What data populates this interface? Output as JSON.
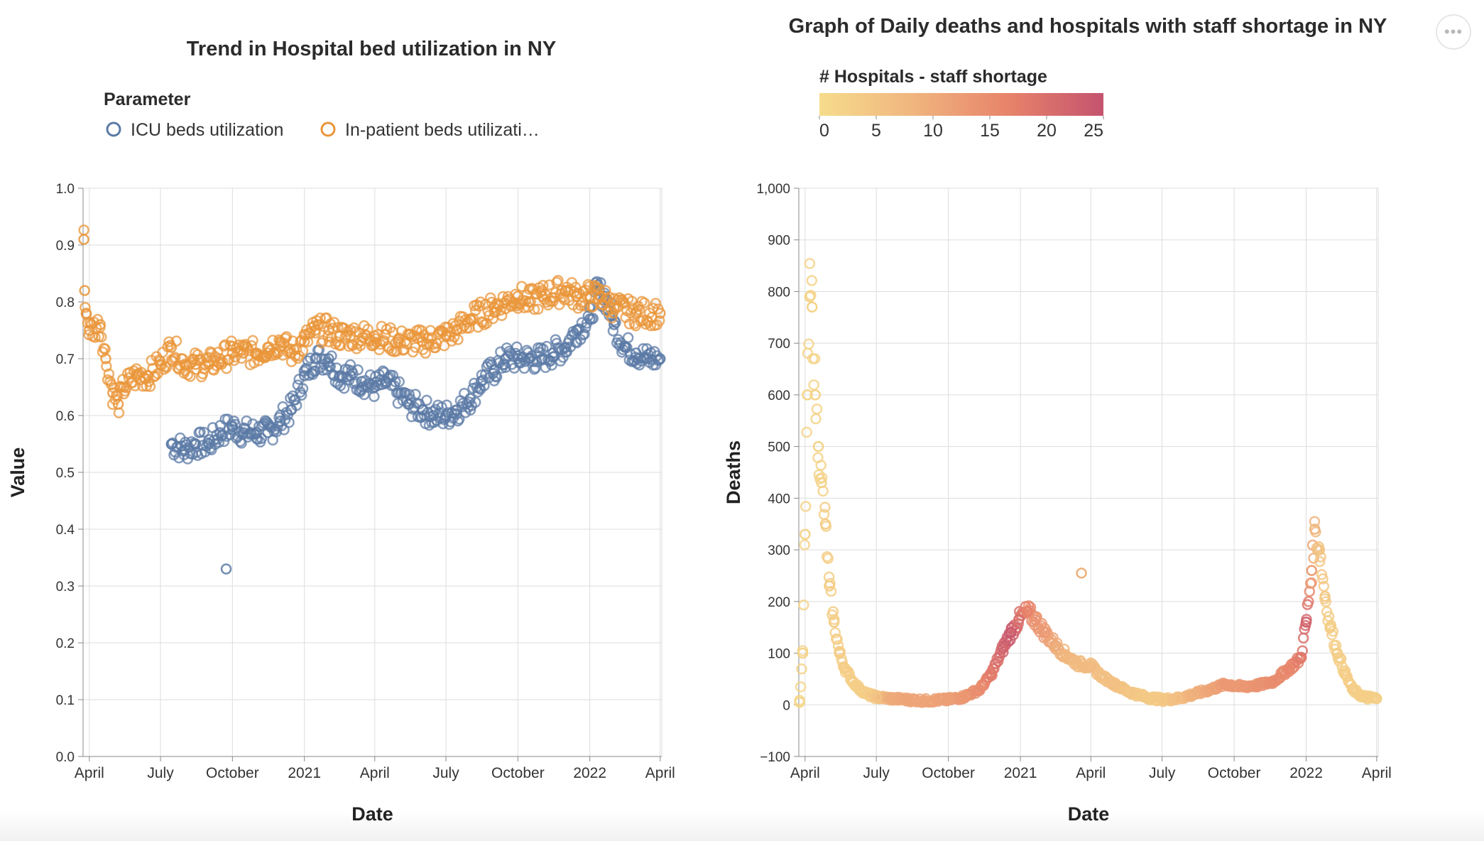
{
  "menu": {
    "icon": "more-horizontal-icon",
    "glyph": "•••"
  },
  "chart_data": [
    {
      "type": "scatter",
      "title": "Trend in Hospital bed utilization in NY",
      "xlabel": "Date",
      "ylabel": "Value",
      "x_tick_labels": [
        "April",
        "July",
        "October",
        "2021",
        "April",
        "July",
        "October",
        "2022",
        "April"
      ],
      "x_range": [
        "2020-03-24",
        "2022-04-03"
      ],
      "ylim": [
        0,
        1
      ],
      "y_ticks": [
        "0.0",
        "0.1",
        "0.2",
        "0.3",
        "0.4",
        "0.5",
        "0.6",
        "0.7",
        "0.8",
        "0.9",
        "1.0"
      ],
      "grid": true,
      "legend": {
        "title": "Parameter",
        "placement": "top-left"
      },
      "series": [
        {
          "name": "ICU beds utilization",
          "color": "#5b7aa6",
          "points": [
            [
              "2020-07-15",
              0.55
            ],
            [
              "2020-08-01",
              0.54
            ],
            [
              "2020-08-15",
              0.55
            ],
            [
              "2020-09-01",
              0.55
            ],
            [
              "2020-09-15",
              0.57
            ],
            [
              "2020-09-23",
              0.33
            ],
            [
              "2020-10-01",
              0.58
            ],
            [
              "2020-10-15",
              0.57
            ],
            [
              "2020-11-01",
              0.57
            ],
            [
              "2020-11-15",
              0.57
            ],
            [
              "2020-12-01",
              0.59
            ],
            [
              "2020-12-15",
              0.61
            ],
            [
              "2021-01-01",
              0.67
            ],
            [
              "2021-01-15",
              0.7
            ],
            [
              "2021-02-01",
              0.7
            ],
            [
              "2021-02-15",
              0.67
            ],
            [
              "2021-03-01",
              0.67
            ],
            [
              "2021-03-15",
              0.66
            ],
            [
              "2021-04-01",
              0.65
            ],
            [
              "2021-04-15",
              0.66
            ],
            [
              "2021-05-01",
              0.64
            ],
            [
              "2021-05-15",
              0.62
            ],
            [
              "2021-06-01",
              0.61
            ],
            [
              "2021-06-15",
              0.6
            ],
            [
              "2021-07-01",
              0.6
            ],
            [
              "2021-07-15",
              0.61
            ],
            [
              "2021-08-01",
              0.63
            ],
            [
              "2021-08-15",
              0.66
            ],
            [
              "2021-09-01",
              0.68
            ],
            [
              "2021-09-15",
              0.7
            ],
            [
              "2021-10-01",
              0.7
            ],
            [
              "2021-10-15",
              0.7
            ],
            [
              "2021-11-01",
              0.7
            ],
            [
              "2021-11-15",
              0.71
            ],
            [
              "2021-12-01",
              0.72
            ],
            [
              "2021-12-15",
              0.75
            ],
            [
              "2022-01-01",
              0.77
            ],
            [
              "2022-01-10",
              0.82
            ],
            [
              "2022-01-20",
              0.81
            ],
            [
              "2022-02-01",
              0.76
            ],
            [
              "2022-02-15",
              0.72
            ],
            [
              "2022-03-01",
              0.71
            ],
            [
              "2022-03-15",
              0.7
            ],
            [
              "2022-04-01",
              0.7
            ]
          ]
        },
        {
          "name": "In-patient beds utilizati…",
          "color": "#e9953a",
          "points": [
            [
              "2020-03-25",
              0.91
            ],
            [
              "2020-03-26",
              0.82
            ],
            [
              "2020-03-28",
              0.78
            ],
            [
              "2020-04-01",
              0.75
            ],
            [
              "2020-04-15",
              0.76
            ],
            [
              "2020-04-22",
              0.7
            ],
            [
              "2020-05-01",
              0.64
            ],
            [
              "2020-05-08",
              0.62
            ],
            [
              "2020-05-15",
              0.65
            ],
            [
              "2020-06-01",
              0.67
            ],
            [
              "2020-06-15",
              0.67
            ],
            [
              "2020-07-01",
              0.69
            ],
            [
              "2020-07-15",
              0.72
            ],
            [
              "2020-08-01",
              0.69
            ],
            [
              "2020-08-15",
              0.69
            ],
            [
              "2020-09-01",
              0.69
            ],
            [
              "2020-09-15",
              0.7
            ],
            [
              "2020-10-01",
              0.71
            ],
            [
              "2020-10-15",
              0.71
            ],
            [
              "2020-11-01",
              0.71
            ],
            [
              "2020-11-15",
              0.72
            ],
            [
              "2020-12-01",
              0.73
            ],
            [
              "2020-12-15",
              0.71
            ],
            [
              "2021-01-01",
              0.73
            ],
            [
              "2021-01-15",
              0.75
            ],
            [
              "2021-02-01",
              0.75
            ],
            [
              "2021-02-15",
              0.74
            ],
            [
              "2021-03-01",
              0.74
            ],
            [
              "2021-04-01",
              0.74
            ],
            [
              "2021-05-01",
              0.73
            ],
            [
              "2021-06-01",
              0.73
            ],
            [
              "2021-07-01",
              0.74
            ],
            [
              "2021-07-15",
              0.75
            ],
            [
              "2021-08-01",
              0.77
            ],
            [
              "2021-09-01",
              0.79
            ],
            [
              "2021-10-01",
              0.81
            ],
            [
              "2021-10-15",
              0.8
            ],
            [
              "2021-11-01",
              0.81
            ],
            [
              "2021-12-01",
              0.82
            ],
            [
              "2021-12-15",
              0.81
            ],
            [
              "2022-01-01",
              0.81
            ],
            [
              "2022-01-15",
              0.81
            ],
            [
              "2022-02-01",
              0.79
            ],
            [
              "2022-03-01",
              0.78
            ],
            [
              "2022-04-01",
              0.78
            ]
          ]
        }
      ]
    },
    {
      "type": "scatter",
      "title": "Graph of Daily deaths and hospitals with staff shortage in NY",
      "xlabel": "Date",
      "ylabel": "Deaths",
      "x_tick_labels": [
        "April",
        "July",
        "October",
        "2021",
        "April",
        "July",
        "October",
        "2022",
        "April"
      ],
      "x_range": [
        "2020-03-24",
        "2022-04-03"
      ],
      "ylim": [
        -100,
        1000
      ],
      "y_ticks": [
        "−100",
        "0",
        "100",
        "200",
        "300",
        "400",
        "500",
        "600",
        "700",
        "800",
        "900",
        "1,000"
      ],
      "grid": true,
      "color_legend": {
        "title": "# Hospitals - staff shortage",
        "placement": "top",
        "range": [
          0,
          25
        ],
        "ticks": [
          "0",
          "5",
          "10",
          "15",
          "20",
          "25"
        ],
        "colors": [
          "#f6dc8c",
          "#f0b57e",
          "#e7836a",
          "#c5536f"
        ]
      },
      "points": [
        [
          "2020-03-25",
          5,
          1
        ],
        [
          "2020-03-29",
          100,
          2
        ],
        [
          "2020-04-01",
          330,
          2
        ],
        [
          "2020-04-04",
          600,
          2
        ],
        [
          "2020-04-07",
          790,
          2
        ],
        [
          "2020-04-10",
          770,
          2
        ],
        [
          "2020-04-14",
          600,
          2
        ],
        [
          "2020-04-18",
          500,
          2
        ],
        [
          "2020-04-22",
          430,
          2
        ],
        [
          "2020-04-27",
          350,
          3
        ],
        [
          "2020-05-02",
          230,
          3
        ],
        [
          "2020-05-08",
          160,
          3
        ],
        [
          "2020-05-15",
          100,
          3
        ],
        [
          "2020-05-22",
          70,
          3
        ],
        [
          "2020-06-01",
          45,
          3
        ],
        [
          "2020-06-10",
          30,
          3
        ],
        [
          "2020-06-20",
          20,
          3
        ],
        [
          "2020-07-01",
          15,
          5
        ],
        [
          "2020-07-20",
          12,
          10
        ],
        [
          "2020-08-10",
          10,
          11
        ],
        [
          "2020-09-01",
          8,
          11
        ],
        [
          "2020-10-01",
          10,
          12
        ],
        [
          "2020-10-20",
          15,
          13
        ],
        [
          "2020-11-10",
          30,
          15
        ],
        [
          "2020-11-25",
          60,
          18
        ],
        [
          "2020-12-10",
          110,
          22
        ],
        [
          "2020-12-20",
          140,
          24
        ],
        [
          "2020-12-30",
          165,
          20
        ],
        [
          "2021-01-10",
          180,
          17
        ],
        [
          "2021-01-20",
          165,
          14
        ],
        [
          "2021-02-01",
          140,
          13
        ],
        [
          "2021-02-15",
          115,
          10
        ],
        [
          "2021-03-01",
          95,
          8
        ],
        [
          "2021-03-15",
          80,
          7
        ],
        [
          "2021-03-20",
          255,
          9
        ],
        [
          "2021-04-01",
          75,
          7
        ],
        [
          "2021-04-15",
          55,
          6
        ],
        [
          "2021-05-01",
          40,
          6
        ],
        [
          "2021-05-20",
          25,
          5
        ],
        [
          "2021-06-10",
          15,
          4
        ],
        [
          "2021-07-01",
          10,
          4
        ],
        [
          "2021-07-20",
          12,
          6
        ],
        [
          "2021-08-10",
          20,
          9
        ],
        [
          "2021-09-01",
          30,
          11
        ],
        [
          "2021-09-20",
          40,
          13
        ],
        [
          "2021-10-10",
          35,
          13
        ],
        [
          "2021-11-01",
          38,
          14
        ],
        [
          "2021-11-20",
          45,
          15
        ],
        [
          "2021-12-10",
          70,
          16
        ],
        [
          "2021-12-25",
          90,
          18
        ],
        [
          "2022-01-01",
          160,
          22
        ],
        [
          "2022-01-08",
          260,
          12
        ],
        [
          "2022-01-12",
          340,
          8
        ],
        [
          "2022-01-18",
          300,
          5
        ],
        [
          "2022-01-25",
          210,
          4
        ],
        [
          "2022-02-01",
          150,
          3
        ],
        [
          "2022-02-10",
          100,
          3
        ],
        [
          "2022-02-20",
          60,
          3
        ],
        [
          "2022-03-01",
          30,
          3
        ],
        [
          "2022-03-15",
          15,
          3
        ],
        [
          "2022-04-01",
          12,
          3
        ]
      ]
    }
  ]
}
